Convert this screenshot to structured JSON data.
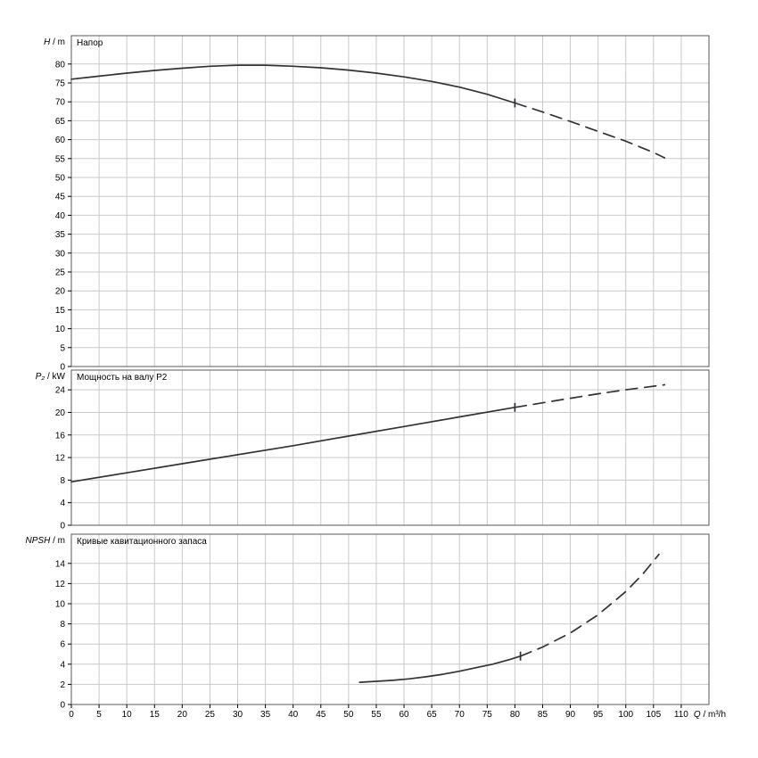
{
  "style": {
    "background": "#ffffff",
    "grid_color": "#c9c9c9",
    "border_color": "#58585c",
    "curve_color": "#32323a",
    "text_color": "#000000"
  },
  "shared_x": {
    "label": "Q / m³/h",
    "lim": [
      0,
      115
    ],
    "ticks": [
      0,
      5,
      10,
      15,
      20,
      25,
      30,
      35,
      40,
      45,
      50,
      55,
      60,
      65,
      70,
      75,
      80,
      85,
      90,
      95,
      100,
      105,
      110
    ]
  },
  "chart_data": [
    {
      "id": "head",
      "type": "line",
      "title": "Напор",
      "ylabel": "H / m",
      "xlabel": "Q / m³/h",
      "ylim": [
        0,
        87.5
      ],
      "yticks": [
        0,
        5,
        10,
        15,
        20,
        25,
        30,
        35,
        40,
        45,
        50,
        55,
        60,
        65,
        70,
        75,
        80
      ],
      "grid": true,
      "legend_position": "none",
      "series": [
        {
          "name": "head-curve-working-range",
          "style": "solid",
          "x": [
            0,
            5,
            10,
            15,
            20,
            25,
            30,
            35,
            40,
            45,
            50,
            55,
            60,
            65,
            70,
            75,
            80
          ],
          "y": [
            76.0,
            76.8,
            77.6,
            78.3,
            78.9,
            79.4,
            79.7,
            79.7,
            79.4,
            79.0,
            78.4,
            77.6,
            76.6,
            75.4,
            73.9,
            72.0,
            69.7
          ]
        },
        {
          "name": "head-curve-extrapolation",
          "style": "dashed",
          "x": [
            80,
            85,
            90,
            95,
            100,
            105,
            107
          ],
          "y": [
            69.7,
            67.3,
            64.8,
            62.2,
            59.6,
            56.6,
            55.2
          ]
        }
      ]
    },
    {
      "id": "power",
      "type": "line",
      "title": "Мощность на валу P2",
      "ylabel": "P₂ / kW",
      "xlabel": "Q / m³/h",
      "ylim": [
        0,
        27.5
      ],
      "yticks": [
        0,
        4,
        8,
        12,
        16,
        20,
        24
      ],
      "grid": true,
      "legend_position": "none",
      "series": [
        {
          "name": "shaft-power-working-range",
          "style": "solid",
          "x": [
            0,
            10,
            20,
            30,
            40,
            50,
            60,
            70,
            80
          ],
          "y": [
            7.7,
            9.3,
            10.9,
            12.5,
            14.1,
            15.8,
            17.5,
            19.2,
            20.9
          ]
        },
        {
          "name": "shaft-power-extrapolation",
          "style": "dashed",
          "x": [
            80,
            85,
            90,
            95,
            100,
            107
          ],
          "y": [
            20.9,
            21.7,
            22.5,
            23.3,
            24.0,
            24.9
          ]
        }
      ]
    },
    {
      "id": "npsh",
      "type": "line",
      "title": "Кривые кавитационного запаса",
      "ylabel": "NPSH / m",
      "xlabel": "Q / m³/h",
      "ylim": [
        0,
        16.9
      ],
      "yticks": [
        0,
        2,
        4,
        6,
        8,
        10,
        12,
        14
      ],
      "grid": true,
      "legend_position": "none",
      "series": [
        {
          "name": "npsh-curve-working-range",
          "style": "solid",
          "x": [
            52,
            55,
            58,
            61,
            64,
            67,
            70,
            73,
            76,
            79,
            81
          ],
          "y": [
            2.2,
            2.3,
            2.4,
            2.55,
            2.75,
            3.0,
            3.3,
            3.65,
            4.0,
            4.45,
            4.8
          ]
        },
        {
          "name": "npsh-curve-extrapolation",
          "style": "dashed",
          "x": [
            81,
            85,
            90,
            95,
            100,
            103,
            106
          ],
          "y": [
            4.8,
            5.7,
            7.1,
            8.9,
            11.2,
            12.9,
            14.9
          ]
        }
      ]
    }
  ]
}
